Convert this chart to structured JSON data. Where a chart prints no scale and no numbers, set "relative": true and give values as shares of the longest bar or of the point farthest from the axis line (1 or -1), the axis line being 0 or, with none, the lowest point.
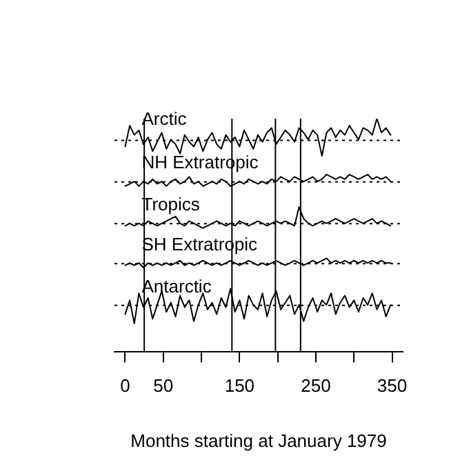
{
  "chart_data": {
    "type": "line",
    "relative": true,
    "xlabel": "Months starting at January 1979",
    "x": [
      0,
      6,
      12,
      18,
      24,
      30,
      36,
      42,
      48,
      54,
      60,
      66,
      72,
      78,
      84,
      90,
      96,
      102,
      108,
      114,
      120,
      126,
      132,
      138,
      144,
      150,
      156,
      162,
      168,
      174,
      180,
      186,
      192,
      198,
      204,
      210,
      216,
      222,
      228,
      234,
      240,
      246,
      252,
      258,
      264,
      270,
      276,
      282,
      288,
      294,
      300,
      306,
      312,
      318,
      324,
      330,
      336,
      342,
      348
    ],
    "xlim": [
      -14,
      364
    ],
    "xticks": [
      0,
      50,
      {
        "value": 100,
        "label": null
      },
      150,
      {
        "value": 200,
        "label": null
      },
      250,
      {
        "value": 300,
        "label": null
      },
      350
    ],
    "grid": false,
    "legend": false,
    "marker": "none",
    "line_style": "solid",
    "series": [
      {
        "name": "Arctic",
        "color": "#000000",
        "values": [
          0.88,
          0.97,
          0.93,
          0.95,
          0.89,
          0.92,
          0.86,
          0.9,
          0.94,
          0.87,
          0.91,
          0.89,
          0.85,
          0.93,
          0.9,
          0.88,
          0.92,
          0.86,
          0.91,
          0.94,
          0.89,
          0.87,
          0.93,
          0.9,
          0.92,
          0.88,
          0.95,
          0.91,
          0.87,
          0.93,
          0.9,
          0.94,
          0.96,
          0.89,
          0.92,
          0.95,
          0.93,
          0.9,
          0.96,
          0.94,
          0.91,
          0.95,
          0.93,
          0.84,
          0.94,
          0.96,
          0.92,
          0.95,
          0.93,
          0.97,
          0.94,
          0.91,
          0.96,
          0.95,
          0.93,
          1,
          0.94,
          0.96,
          0.93
        ]
      },
      {
        "name": "NH Extratropic",
        "color": "#000000",
        "values": [
          0.71,
          0.72,
          0.73,
          0.71,
          0.73,
          0.72,
          0.74,
          0.72,
          0.73,
          0.71,
          0.73,
          0.74,
          0.72,
          0.73,
          0.75,
          0.72,
          0.73,
          0.71,
          0.72,
          0.73,
          0.72,
          0.74,
          0.73,
          0.71,
          0.72,
          0.73,
          0.72,
          0.74,
          0.73,
          0.72,
          0.73,
          0.72,
          0.74,
          0.73,
          0.75,
          0.74,
          0.73,
          0.75,
          0.74,
          0.73,
          0.74,
          0.75,
          0.73,
          0.74,
          0.76,
          0.75,
          0.74,
          0.75,
          0.74,
          0.76,
          0.75,
          0.74,
          0.75,
          0.76,
          0.74,
          0.75,
          0.74,
          0.75,
          0.73
        ]
      },
      {
        "name": "Tropics",
        "color": "#000000",
        "values": [
          0.54,
          0.55,
          0.54,
          0.55,
          0.54,
          0.56,
          0.55,
          0.54,
          0.55,
          0.56,
          0.57,
          0.58,
          0.55,
          0.54,
          0.56,
          0.55,
          0.54,
          0.53,
          0.54,
          0.55,
          0.56,
          0.55,
          0.54,
          0.55,
          0.54,
          0.56,
          0.55,
          0.54,
          0.55,
          0.56,
          0.55,
          0.54,
          0.55,
          0.56,
          0.55,
          0.56,
          0.55,
          0.54,
          0.62,
          0.57,
          0.55,
          0.54,
          0.55,
          0.56,
          0.55,
          0.56,
          0.57,
          0.56,
          0.55,
          0.56,
          0.57,
          0.56,
          0.55,
          0.56,
          0.57,
          0.55,
          0.56,
          0.55,
          0.54
        ]
      },
      {
        "name": "SH Extratropic",
        "color": "#000000",
        "values": [
          0.37,
          0.38,
          0.37,
          0.38,
          0.36,
          0.38,
          0.37,
          0.38,
          0.37,
          0.38,
          0.37,
          0.38,
          0.39,
          0.37,
          0.38,
          0.37,
          0.38,
          0.39,
          0.38,
          0.37,
          0.38,
          0.37,
          0.38,
          0.39,
          0.38,
          0.37,
          0.38,
          0.39,
          0.38,
          0.37,
          0.38,
          0.37,
          0.38,
          0.39,
          0.38,
          0.37,
          0.38,
          0.39,
          0.38,
          0.37,
          0.38,
          0.39,
          0.38,
          0.39,
          0.4,
          0.38,
          0.39,
          0.38,
          0.39,
          0.38,
          0.39,
          0.38,
          0.39,
          0.38,
          0.39,
          0.38,
          0.39,
          0.38,
          0.38
        ]
      },
      {
        "name": "Antarctic",
        "color": "#000000",
        "values": [
          0.16,
          0.22,
          0.12,
          0.25,
          0.19,
          0.23,
          0.14,
          0.2,
          0.26,
          0.17,
          0.21,
          0.15,
          0.24,
          0.19,
          0.22,
          0.13,
          0.2,
          0.25,
          0.18,
          0.21,
          0.16,
          0.23,
          0.19,
          0.27,
          0.17,
          0.22,
          0.14,
          0.24,
          0.2,
          0.18,
          0.25,
          0.15,
          0.22,
          0.26,
          0.18,
          0.21,
          0.24,
          0.16,
          0.2,
          0.13,
          0.19,
          0.23,
          0.17,
          0.22,
          0.2,
          0.25,
          0.16,
          0.21,
          0.24,
          0.19,
          0.22,
          0.17,
          0.23,
          0.2,
          0.25,
          0.18,
          0.22,
          0.15,
          0.2
        ]
      }
    ],
    "ref_lines": [
      {
        "axis": "y",
        "value": 0.907,
        "line_style": "dotted",
        "color": "#000000"
      },
      {
        "axis": "y",
        "value": 0.728,
        "line_style": "dotted",
        "color": "#000000"
      },
      {
        "axis": "y",
        "value": 0.549,
        "line_style": "dotted",
        "color": "#000000"
      },
      {
        "axis": "y",
        "value": 0.377,
        "line_style": "dotted",
        "color": "#000000"
      },
      {
        "axis": "y",
        "value": 0.198,
        "line_style": "dotted",
        "color": "#000000"
      },
      {
        "axis": "x",
        "value": 25,
        "color": "#000000"
      },
      {
        "axis": "x",
        "value": 140,
        "color": "#000000"
      },
      {
        "axis": "x",
        "value": 197,
        "color": "#000000"
      },
      {
        "axis": "x",
        "value": 230,
        "color": "#000000"
      }
    ]
  }
}
